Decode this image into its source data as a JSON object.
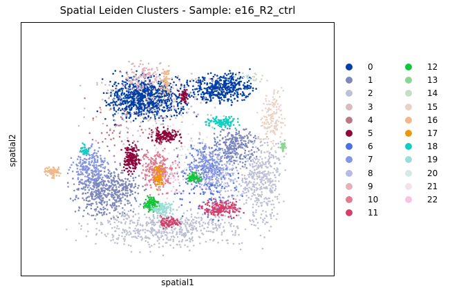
{
  "chart_data": {
    "type": "scatter",
    "title": "Spatial Leiden Clusters - Sample: e16_R2_ctrl",
    "xlabel": "spatial1",
    "ylabel": "spatial2",
    "grid": false,
    "ticks_shown": false,
    "legend_placement": "right, outside plot, two columns",
    "series": [
      {
        "name": "0",
        "color": "#023fa5"
      },
      {
        "name": "1",
        "color": "#7d87b9"
      },
      {
        "name": "2",
        "color": "#bec1d4"
      },
      {
        "name": "3",
        "color": "#d6bcc0"
      },
      {
        "name": "4",
        "color": "#bb7784"
      },
      {
        "name": "5",
        "color": "#8e063b"
      },
      {
        "name": "6",
        "color": "#4a6fe3"
      },
      {
        "name": "7",
        "color": "#8595e1"
      },
      {
        "name": "8",
        "color": "#b5bbe3"
      },
      {
        "name": "9",
        "color": "#e6afb9"
      },
      {
        "name": "10",
        "color": "#e07b91"
      },
      {
        "name": "11",
        "color": "#d33f6a"
      },
      {
        "name": "12",
        "color": "#11c638"
      },
      {
        "name": "13",
        "color": "#8dd593"
      },
      {
        "name": "14",
        "color": "#c6dec7"
      },
      {
        "name": "15",
        "color": "#ead3c6"
      },
      {
        "name": "16",
        "color": "#f0b98d"
      },
      {
        "name": "17",
        "color": "#ef9708"
      },
      {
        "name": "18",
        "color": "#0fcfc0"
      },
      {
        "name": "19",
        "color": "#9cded6"
      },
      {
        "name": "20",
        "color": "#d5eae7"
      },
      {
        "name": "21",
        "color": "#f3e1eb"
      },
      {
        "name": "22",
        "color": "#f6c4e1"
      }
    ]
  }
}
